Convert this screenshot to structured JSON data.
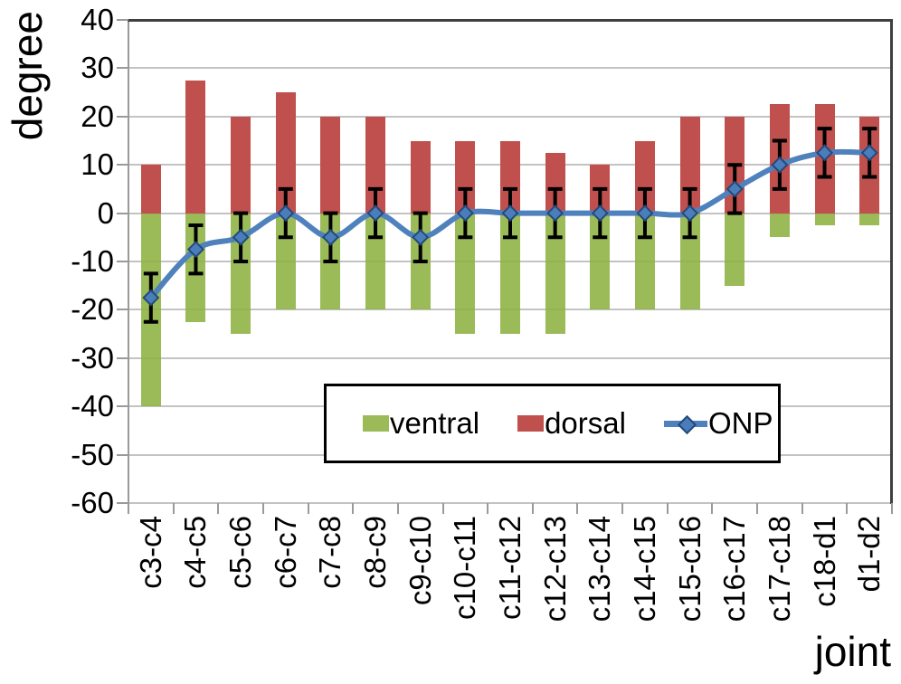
{
  "chart_data": {
    "type": "combo-bar-line",
    "title": "",
    "xlabel": "joint",
    "ylabel": "degree",
    "ylim": [
      -60,
      40
    ],
    "ytick_step": 10,
    "yticks": [
      40,
      30,
      20,
      10,
      0,
      -10,
      -20,
      -30,
      -40,
      -50,
      -60
    ],
    "grid": true,
    "legend_position": "inside-bottom-center",
    "categories": [
      "c3-c4",
      "c4-c5",
      "c5-c6",
      "c6-c7",
      "c7-c8",
      "c8-c9",
      "c9-c10",
      "c10-c11",
      "c11-c12",
      "c12-c13",
      "c13-c14",
      "c14-c15",
      "c15-c16",
      "c16-c17",
      "c17-c18",
      "c18-d1",
      "d1-d2"
    ],
    "series": [
      {
        "name": "ventral",
        "type": "bar",
        "color": "#9BBB59",
        "values": [
          -40,
          -22.5,
          -25,
          -20,
          -20,
          -20,
          -20,
          -25,
          -25,
          -25,
          -20,
          -20,
          -20,
          -15,
          -5,
          -2.5,
          -2.5
        ]
      },
      {
        "name": "dorsal",
        "type": "bar",
        "color": "#C0504D",
        "values": [
          10,
          27.5,
          20,
          25,
          20,
          20,
          15,
          15,
          15,
          12.5,
          10,
          15,
          20,
          20,
          22.5,
          22.5,
          20
        ]
      },
      {
        "name": "ONP",
        "type": "line",
        "smoothed": true,
        "marker": "diamond",
        "color": "#4F81BD",
        "marker_edge_color": "#24497B",
        "error_bar_plus_minus": 5,
        "values": [
          -17.5,
          -7.5,
          -5,
          0,
          -5,
          0,
          -5,
          0,
          0,
          0,
          0,
          0,
          0,
          5,
          10,
          12.5,
          12.5
        ]
      }
    ]
  },
  "colors": {
    "background": "#FFFFFF",
    "gridline": "#C3C3C3",
    "axis_line": "#9A9A9A",
    "plot_border": "#3F3F3F",
    "error_bar": "#000000",
    "legend_border": "#000000",
    "text": "#000000"
  }
}
